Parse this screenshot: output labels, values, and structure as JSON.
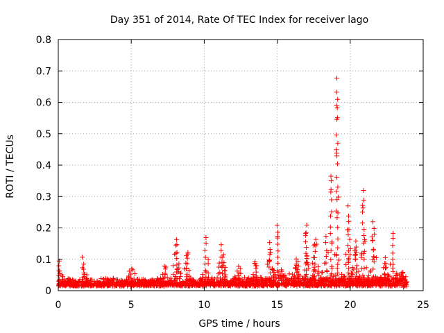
{
  "chart_data": {
    "type": "scatter",
    "title": "Day 351 of 2014, Rate Of TEC Index for receiver lago",
    "xlabel": "GPS time / hours",
    "ylabel": "ROTI / TECUs",
    "xlim": [
      0,
      25
    ],
    "ylim": [
      0,
      0.8
    ],
    "xticks": [
      0,
      5,
      10,
      15,
      20,
      25
    ],
    "yticks": [
      0,
      0.1,
      0.2,
      0.3,
      0.4,
      0.5,
      0.6,
      0.7,
      0.8
    ],
    "xtick_labels": [
      "0",
      "5",
      "10",
      "15",
      "20",
      "25"
    ],
    "ytick_labels": [
      "0",
      "0.1",
      "0.2",
      "0.3",
      "0.4",
      "0.5",
      "0.6",
      "0.7",
      "0.8"
    ],
    "grid": true,
    "marker": "+",
    "series": [
      {
        "name": "ROTI",
        "color": "#ff0000",
        "x_range_hours": [
          0,
          23.9
        ],
        "baseline_roti": 0.015,
        "peaks": [
          {
            "x": 0.05,
            "y": 0.1
          },
          {
            "x": 1.7,
            "y": 0.09
          },
          {
            "x": 5.0,
            "y": 0.07
          },
          {
            "x": 7.3,
            "y": 0.07
          },
          {
            "x": 8.1,
            "y": 0.17
          },
          {
            "x": 8.8,
            "y": 0.11
          },
          {
            "x": 10.1,
            "y": 0.18
          },
          {
            "x": 11.2,
            "y": 0.15
          },
          {
            "x": 12.3,
            "y": 0.08
          },
          {
            "x": 13.5,
            "y": 0.09
          },
          {
            "x": 14.5,
            "y": 0.16
          },
          {
            "x": 15.05,
            "y": 0.22
          },
          {
            "x": 16.3,
            "y": 0.09
          },
          {
            "x": 17.0,
            "y": 0.21
          },
          {
            "x": 17.6,
            "y": 0.17
          },
          {
            "x": 18.35,
            "y": 0.18
          },
          {
            "x": 18.7,
            "y": 0.37
          },
          {
            "x": 19.1,
            "y": 0.7
          },
          {
            "x": 19.9,
            "y": 0.28
          },
          {
            "x": 20.4,
            "y": 0.16
          },
          {
            "x": 20.9,
            "y": 0.33
          },
          {
            "x": 21.6,
            "y": 0.23
          },
          {
            "x": 22.4,
            "y": 0.11
          },
          {
            "x": 22.9,
            "y": 0.19
          },
          {
            "x": 23.6,
            "y": 0.06
          }
        ]
      }
    ]
  }
}
